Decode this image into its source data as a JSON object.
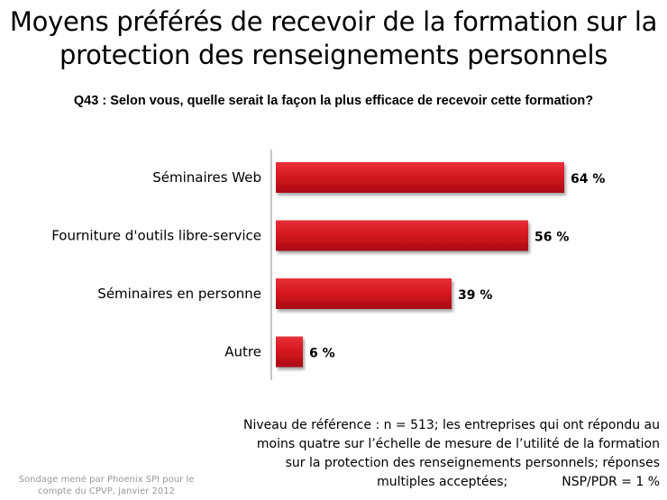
{
  "title_line1": "Moyens préférés de recevoir de la formation sur la",
  "title_line2": "protection des renseignements personnels",
  "question": "Q43 : Selon vous, quelle serait la façon la plus efficace de recevoir cette formation?",
  "chart_data": {
    "type": "bar",
    "orientation": "horizontal",
    "categories": [
      "Séminaires Web",
      "Fourniture d'outils libre-service",
      "Séminaires en personne",
      "Autre"
    ],
    "values": [
      64,
      56,
      39,
      6
    ],
    "value_labels": [
      "64 %",
      "56 %",
      "39 %",
      "6 %"
    ],
    "unit": "%",
    "xlim": [
      0,
      100
    ],
    "bar_color": "#d0141c"
  },
  "footnote": {
    "line1": "Niveau de référence : n = 513; les entreprises qui ont répondu au",
    "line2": "moins quatre sur l’échelle de mesure de l’utilité de la formation",
    "line3": "sur la protection des renseignements personnels; réponses",
    "line4": "multiples acceptées;",
    "nsp": "NSP/PDR = 1 %"
  },
  "source": {
    "line1": "Sondage mené par Phoenix SPI pour le",
    "line2": "compte du CPVP, janvier 2012"
  }
}
